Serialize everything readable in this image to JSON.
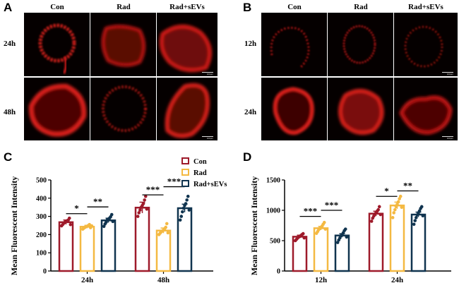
{
  "panels": {
    "a": {
      "letter": "A",
      "columns": [
        "Con",
        "Rad",
        "Rad+sEVs"
      ],
      "rows": [
        "24h",
        "48h"
      ],
      "scale_label": "100μm"
    },
    "b": {
      "letter": "B",
      "columns": [
        "Con",
        "Rad",
        "Rad+sEVs"
      ],
      "rows": [
        "12h",
        "24h"
      ],
      "scale_label": "100μm"
    },
    "c": {
      "letter": "C"
    },
    "d": {
      "letter": "D"
    }
  },
  "colors": {
    "Con": "#9e1a2a",
    "Rad": "#f4b942",
    "Rad+sEVs": "#10344f",
    "fluor": "#e0201c"
  },
  "chart_data": [
    {
      "id": "C",
      "type": "bar",
      "categories": [
        "24h",
        "48h"
      ],
      "ylabel": "Mean Fluorescent Intensity",
      "ylim": [
        0,
        500
      ],
      "yticks": [
        0,
        100,
        200,
        300,
        400,
        500
      ],
      "legend": [
        "Con",
        "Rad",
        "Rad+sEVs"
      ],
      "legend_position": "top-center",
      "series": [
        {
          "name": "Con",
          "values": [
            268,
            348
          ],
          "err": [
            12,
            30
          ],
          "points": [
            [
              248,
              255,
              262,
              268,
              272,
              276,
              280,
              290,
              255
            ],
            [
              300,
              320,
              335,
              350,
              360,
              370,
              390,
              410,
              340
            ]
          ]
        },
        {
          "name": "Rad",
          "values": [
            243,
            222
          ],
          "err": [
            8,
            14
          ],
          "points": [
            [
              230,
              235,
              240,
              243,
              246,
              250,
              255,
              238,
              248
            ],
            [
              200,
              208,
              215,
              220,
              225,
              232,
              240,
              260,
              210
            ]
          ]
        },
        {
          "name": "Rad+sEVs",
          "values": [
            278,
            345
          ],
          "err": [
            12,
            22
          ],
          "points": [
            [
              245,
              258,
              268,
              280,
              285,
              290,
              298,
              310,
              272
            ],
            [
              280,
              300,
              325,
              345,
              360,
              370,
              390,
              410,
              335
            ]
          ]
        }
      ],
      "significance": [
        {
          "from": "Con",
          "to": "Rad",
          "category": "24h",
          "label": "*",
          "y": 315
        },
        {
          "from": "Rad",
          "to": "Rad+sEVs",
          "category": "24h",
          "label": "**",
          "y": 352
        },
        {
          "from": "Con",
          "to": "Rad",
          "category": "48h",
          "label": "***",
          "y": 418
        },
        {
          "from": "Rad",
          "to": "Rad+sEVs",
          "category": "48h",
          "label": "***",
          "y": 463
        }
      ]
    },
    {
      "id": "D",
      "type": "bar",
      "categories": [
        "12h",
        "24h"
      ],
      "ylabel": "Mean Fluorescent Intensity",
      "ylim": [
        0,
        1500
      ],
      "yticks": [
        0,
        500,
        1000,
        1500
      ],
      "series": [
        {
          "name": "Con",
          "values": [
            565,
            945
          ],
          "err": [
            25,
            40
          ],
          "points": [
            [
              500,
              520,
              540,
              560,
              570,
              585,
              600,
              615,
              545
            ],
            [
              820,
              870,
              905,
              940,
              960,
              985,
              1010,
              1060,
              930
            ]
          ]
        },
        {
          "name": "Rad",
          "values": [
            705,
            1080
          ],
          "err": [
            30,
            55
          ],
          "points": [
            [
              620,
              650,
              680,
              700,
              720,
              740,
              770,
              800,
              690
            ],
            [
              880,
              960,
              1010,
              1060,
              1100,
              1140,
              1190,
              1230,
              1050
            ]
          ]
        },
        {
          "name": "Rad+sEVs",
          "values": [
            585,
            930
          ],
          "err": [
            30,
            40
          ],
          "points": [
            [
              470,
              510,
              545,
              580,
              600,
              630,
              665,
              690,
              560
            ],
            [
              770,
              830,
              880,
              925,
              960,
              990,
              1030,
              1060,
              910
            ]
          ]
        }
      ],
      "significance": [
        {
          "from": "Con",
          "to": "Rad",
          "category": "12h",
          "label": "***",
          "y": 900
        },
        {
          "from": "Rad",
          "to": "Rad+sEVs",
          "category": "12h",
          "label": "***",
          "y": 1000
        },
        {
          "from": "Con",
          "to": "Rad",
          "category": "24h",
          "label": "*",
          "y": 1230
        },
        {
          "from": "Rad",
          "to": "Rad+sEVs",
          "category": "24h",
          "label": "**",
          "y": 1320
        }
      ]
    }
  ]
}
